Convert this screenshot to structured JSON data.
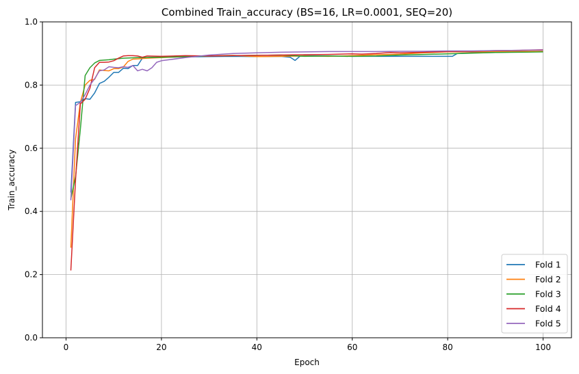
{
  "chart_data": {
    "type": "line",
    "title": "Combined Train_accuracy (BS=16, LR=0.0001, SEQ=20)",
    "xlabel": "Epoch",
    "ylabel": "Train_accuracy",
    "xlim": [
      -4.95,
      105.95
    ],
    "ylim": [
      0.0,
      1.0
    ],
    "xticks": [
      0,
      20,
      40,
      60,
      80,
      100
    ],
    "yticks": [
      0.0,
      0.2,
      0.4,
      0.6,
      0.8,
      1.0
    ],
    "grid": true,
    "legend_position": "lower-right",
    "series": [
      {
        "name": "Fold 1",
        "color": "#1f77b4",
        "x": [
          1,
          2,
          3,
          4,
          5,
          6,
          7,
          8,
          9,
          10,
          11,
          12,
          13,
          14,
          15,
          16,
          17,
          18,
          20,
          25,
          30,
          35,
          40,
          45,
          47,
          48,
          49,
          50,
          55,
          60,
          65,
          70,
          75,
          80,
          81,
          82,
          85,
          90,
          95,
          100
        ],
        "y": [
          0.46,
          0.745,
          0.747,
          0.757,
          0.755,
          0.775,
          0.805,
          0.812,
          0.825,
          0.84,
          0.84,
          0.853,
          0.852,
          0.862,
          0.862,
          0.885,
          0.887,
          0.888,
          0.888,
          0.889,
          0.89,
          0.891,
          0.89,
          0.891,
          0.888,
          0.878,
          0.891,
          0.893,
          0.892,
          0.891,
          0.891,
          0.891,
          0.891,
          0.891,
          0.891,
          0.9,
          0.902,
          0.903,
          0.905,
          0.907
        ]
      },
      {
        "name": "Fold 2",
        "color": "#ff7f0e",
        "x": [
          1,
          2,
          3,
          4,
          5,
          6,
          7,
          8,
          9,
          10,
          11,
          12,
          13,
          14,
          15,
          17,
          20,
          25,
          30,
          35,
          40,
          45,
          50,
          55,
          60,
          65,
          70,
          75,
          80,
          85,
          90,
          95,
          100
        ],
        "y": [
          0.285,
          0.63,
          0.745,
          0.8,
          0.815,
          0.818,
          0.848,
          0.846,
          0.845,
          0.852,
          0.852,
          0.857,
          0.875,
          0.882,
          0.883,
          0.885,
          0.887,
          0.89,
          0.892,
          0.894,
          0.89,
          0.891,
          0.892,
          0.891,
          0.893,
          0.896,
          0.898,
          0.902,
          0.905,
          0.905,
          0.906,
          0.907,
          0.907
        ]
      },
      {
        "name": "Fold 3",
        "color": "#2ca02c",
        "x": [
          1,
          2,
          3,
          4,
          5,
          6,
          7,
          8,
          9,
          10,
          12,
          15,
          20,
          25,
          30,
          35,
          40,
          45,
          50,
          55,
          60,
          65,
          70,
          75,
          80,
          85,
          90,
          95,
          100
        ],
        "y": [
          0.44,
          0.51,
          0.66,
          0.83,
          0.855,
          0.87,
          0.878,
          0.879,
          0.88,
          0.882,
          0.885,
          0.887,
          0.888,
          0.89,
          0.892,
          0.893,
          0.894,
          0.895,
          0.891,
          0.892,
          0.891,
          0.892,
          0.895,
          0.897,
          0.899,
          0.901,
          0.903,
          0.904,
          0.905
        ]
      },
      {
        "name": "Fold 4",
        "color": "#d62728",
        "x": [
          1,
          2,
          3,
          4,
          5,
          6,
          7,
          8,
          9,
          10,
          11,
          12,
          13,
          14,
          15,
          16,
          17,
          20,
          25,
          30,
          35,
          40,
          45,
          50,
          55,
          60,
          62,
          65,
          68,
          70,
          75,
          80,
          85,
          90,
          95,
          100
        ],
        "y": [
          0.213,
          0.5,
          0.74,
          0.755,
          0.79,
          0.855,
          0.872,
          0.872,
          0.873,
          0.877,
          0.885,
          0.892,
          0.893,
          0.893,
          0.892,
          0.888,
          0.892,
          0.891,
          0.893,
          0.892,
          0.893,
          0.894,
          0.895,
          0.896,
          0.897,
          0.899,
          0.898,
          0.9,
          0.903,
          0.902,
          0.904,
          0.906,
          0.907,
          0.909,
          0.91,
          0.912
        ]
      },
      {
        "name": "Fold 5",
        "color": "#9467bd",
        "x": [
          1,
          2,
          3,
          4,
          5,
          6,
          7,
          8,
          9,
          10,
          11,
          12,
          13,
          14,
          15,
          16,
          17,
          18,
          19,
          20,
          22,
          25,
          30,
          35,
          40,
          45,
          50,
          55,
          60,
          65,
          70,
          75,
          80,
          85,
          90,
          95,
          100
        ],
        "y": [
          0.435,
          0.735,
          0.745,
          0.77,
          0.8,
          0.82,
          0.845,
          0.848,
          0.858,
          0.856,
          0.855,
          0.858,
          0.856,
          0.862,
          0.845,
          0.85,
          0.845,
          0.855,
          0.872,
          0.877,
          0.881,
          0.887,
          0.895,
          0.9,
          0.902,
          0.904,
          0.905,
          0.906,
          0.906,
          0.906,
          0.907,
          0.907,
          0.908,
          0.908,
          0.909,
          0.91,
          0.911
        ]
      }
    ]
  }
}
